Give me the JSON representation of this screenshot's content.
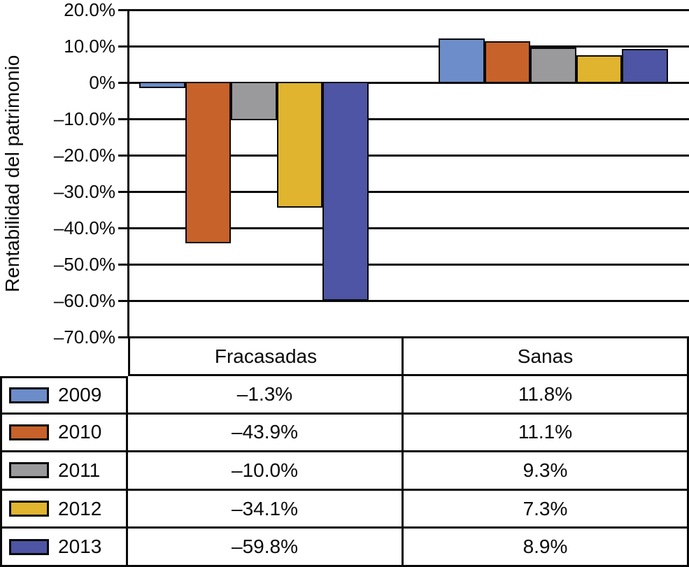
{
  "chart_data": {
    "type": "bar",
    "title": "",
    "xlabel": "",
    "ylabel": "Rentabilidad del patrimonio",
    "categories": [
      "Fracasadas",
      "Sanas"
    ],
    "series": [
      {
        "name": "2009",
        "color": "#6C8DC9",
        "values": [
          -1.3,
          11.8
        ]
      },
      {
        "name": "2010",
        "color": "#C7622A",
        "values": [
          -43.9,
          11.1
        ]
      },
      {
        "name": "2011",
        "color": "#9A999B",
        "values": [
          -10.0,
          9.3
        ]
      },
      {
        "name": "2012",
        "color": "#E0B42E",
        "values": [
          -34.1,
          7.3
        ]
      },
      {
        "name": "2013",
        "color": "#4D55A4",
        "values": [
          -59.8,
          8.9
        ]
      }
    ],
    "ylim": [
      -70,
      20
    ],
    "ytick_step": 10,
    "ytick_labels": [
      "20.0%",
      "10.0%",
      "0%",
      "–10.0%",
      "–20.0%",
      "–30.0%",
      "–40.0%",
      "–50.0%",
      "–60.0%",
      "–70.0%"
    ],
    "grid": true,
    "bar_outline_color": "#0a0a0a",
    "legend_position": "table-left-column"
  },
  "table": {
    "col_headers": [
      "Fracasadas",
      "Sanas"
    ],
    "rows": [
      {
        "year": "2009",
        "color": "#6C8DC9",
        "fracasadas": "–1.3%",
        "sanas": "11.8%"
      },
      {
        "year": "2010",
        "color": "#C7622A",
        "fracasadas": "–43.9%",
        "sanas": "11.1%"
      },
      {
        "year": "2011",
        "color": "#9A999B",
        "fracasadas": "–10.0%",
        "sanas": "9.3%"
      },
      {
        "year": "2012",
        "color": "#E0B42E",
        "fracasadas": "–34.1%",
        "sanas": "7.3%"
      },
      {
        "year": "2013",
        "color": "#4D55A4",
        "fracasadas": "–59.8%",
        "sanas": "8.9%"
      }
    ]
  }
}
